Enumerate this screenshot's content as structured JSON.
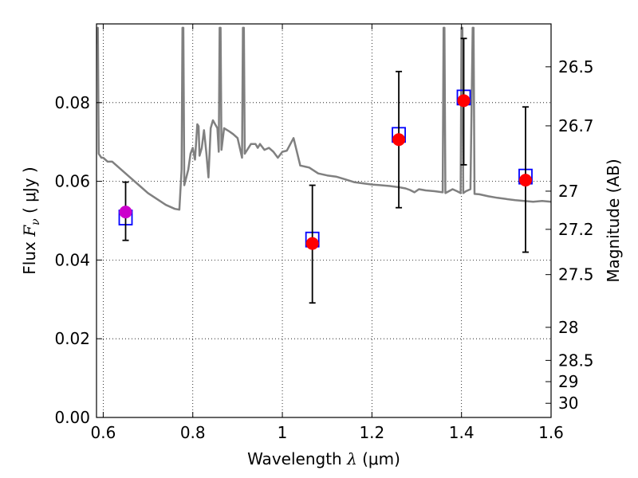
{
  "chart_data": {
    "type": "scatter",
    "xlabel": {
      "prefix": "Wavelength  ",
      "symbol": "λ",
      "units": " (μm)"
    },
    "ylabel": {
      "prefix": "Flux  ",
      "symbol": "F",
      "subscript": "ν",
      "units": "  ( μJy )"
    },
    "right_ylabel": "Magnitude (AB)",
    "xlim": [
      0.585,
      1.6
    ],
    "ylim": [
      0.0,
      0.1
    ],
    "x_ticks": [
      {
        "value": 0.6,
        "label": "0.6"
      },
      {
        "value": 0.8,
        "label": "0.8"
      },
      {
        "value": 1.0,
        "label": "1"
      },
      {
        "value": 1.2,
        "label": "1.2"
      },
      {
        "value": 1.4,
        "label": "1.4"
      },
      {
        "value": 1.6,
        "label": "1.6"
      }
    ],
    "y_ticks": [
      {
        "value": 0.0,
        "label": "0.00"
      },
      {
        "value": 0.02,
        "label": "0.02"
      },
      {
        "value": 0.04,
        "label": "0.04"
      },
      {
        "value": 0.06,
        "label": "0.06"
      },
      {
        "value": 0.08,
        "label": "0.08"
      }
    ],
    "right_ticks": [
      {
        "flux": 0.0891,
        "label": "26.5"
      },
      {
        "flux": 0.0741,
        "label": "26.7"
      },
      {
        "flux": 0.0575,
        "label": "27"
      },
      {
        "flux": 0.0478,
        "label": "27.2"
      },
      {
        "flux": 0.0363,
        "label": "27.5"
      },
      {
        "flux": 0.0229,
        "label": "28"
      },
      {
        "flux": 0.0145,
        "label": "28.5"
      },
      {
        "flux": 0.0091,
        "label": "29"
      },
      {
        "flux": 0.0036,
        "label": "30"
      }
    ],
    "grid": true,
    "model_spectrum": {
      "color": "#808080",
      "points": [
        [
          0.585,
          0.095
        ],
        [
          0.588,
          0.099
        ],
        [
          0.59,
          0.067
        ],
        [
          0.596,
          0.066
        ],
        [
          0.6,
          0.066
        ],
        [
          0.61,
          0.065
        ],
        [
          0.62,
          0.065
        ],
        [
          0.64,
          0.063
        ],
        [
          0.66,
          0.061
        ],
        [
          0.68,
          0.059
        ],
        [
          0.7,
          0.057
        ],
        [
          0.72,
          0.0555
        ],
        [
          0.74,
          0.054
        ],
        [
          0.76,
          0.053
        ],
        [
          0.77,
          0.0528
        ],
        [
          0.775,
          0.063
        ],
        [
          0.777,
          0.099
        ],
        [
          0.779,
          0.099
        ],
        [
          0.781,
          0.059
        ],
        [
          0.79,
          0.063
        ],
        [
          0.795,
          0.067
        ],
        [
          0.8,
          0.0685
        ],
        [
          0.805,
          0.0655
        ],
        [
          0.81,
          0.0745
        ],
        [
          0.813,
          0.074
        ],
        [
          0.815,
          0.0665
        ],
        [
          0.82,
          0.0685
        ],
        [
          0.825,
          0.073
        ],
        [
          0.83,
          0.0675
        ],
        [
          0.835,
          0.061
        ],
        [
          0.84,
          0.0735
        ],
        [
          0.845,
          0.0755
        ],
        [
          0.85,
          0.0745
        ],
        [
          0.855,
          0.0735
        ],
        [
          0.858,
          0.0675
        ],
        [
          0.86,
          0.099
        ],
        [
          0.862,
          0.099
        ],
        [
          0.864,
          0.068
        ],
        [
          0.87,
          0.0735
        ],
        [
          0.88,
          0.0728
        ],
        [
          0.89,
          0.072
        ],
        [
          0.9,
          0.071
        ],
        [
          0.905,
          0.0685
        ],
        [
          0.91,
          0.066
        ],
        [
          0.912,
          0.099
        ],
        [
          0.914,
          0.099
        ],
        [
          0.916,
          0.067
        ],
        [
          0.93,
          0.0695
        ],
        [
          0.94,
          0.0695
        ],
        [
          0.945,
          0.0685
        ],
        [
          0.95,
          0.0695
        ],
        [
          0.96,
          0.068
        ],
        [
          0.97,
          0.0685
        ],
        [
          0.98,
          0.0675
        ],
        [
          0.99,
          0.066
        ],
        [
          1.0,
          0.0675
        ],
        [
          1.01,
          0.0678
        ],
        [
          1.025,
          0.071
        ],
        [
          1.04,
          0.064
        ],
        [
          1.06,
          0.0635
        ],
        [
          1.08,
          0.062
        ],
        [
          1.1,
          0.0615
        ],
        [
          1.12,
          0.0612
        ],
        [
          1.14,
          0.0605
        ],
        [
          1.16,
          0.0598
        ],
        [
          1.18,
          0.0595
        ],
        [
          1.2,
          0.0592
        ],
        [
          1.22,
          0.059
        ],
        [
          1.24,
          0.0588
        ],
        [
          1.26,
          0.0585
        ],
        [
          1.275,
          0.0582
        ],
        [
          1.285,
          0.0578
        ],
        [
          1.295,
          0.0572
        ],
        [
          1.305,
          0.058
        ],
        [
          1.32,
          0.0577
        ],
        [
          1.34,
          0.0575
        ],
        [
          1.358,
          0.0572
        ],
        [
          1.36,
          0.099
        ],
        [
          1.362,
          0.099
        ],
        [
          1.364,
          0.057
        ],
        [
          1.38,
          0.058
        ],
        [
          1.39,
          0.0575
        ],
        [
          1.398,
          0.057
        ],
        [
          1.4,
          0.099
        ],
        [
          1.402,
          0.099
        ],
        [
          1.404,
          0.057
        ],
        [
          1.41,
          0.0575
        ],
        [
          1.42,
          0.058
        ],
        [
          1.425,
          0.099
        ],
        [
          1.427,
          0.099
        ],
        [
          1.429,
          0.0568
        ],
        [
          1.44,
          0.0567
        ],
        [
          1.46,
          0.0562
        ],
        [
          1.48,
          0.0558
        ],
        [
          1.5,
          0.0555
        ],
        [
          1.52,
          0.0552
        ],
        [
          1.54,
          0.055
        ],
        [
          1.56,
          0.0548
        ],
        [
          1.58,
          0.055
        ],
        [
          1.6,
          0.0548
        ]
      ]
    },
    "model_flux_boxes": {
      "color": "#0000ff",
      "points": [
        [
          0.65,
          0.0508
        ],
        [
          1.067,
          0.0452
        ],
        [
          1.26,
          0.0718
        ],
        [
          1.405,
          0.0813
        ],
        [
          1.543,
          0.0612
        ]
      ]
    },
    "observed_points": {
      "marker_color": "#ff0000",
      "errorbar_color": "#000000",
      "points": [
        {
          "x": 0.65,
          "y": 0.0522,
          "lo": 0.045,
          "hi": 0.0598,
          "color": "#cc00cc"
        },
        {
          "x": 1.067,
          "y": 0.0442,
          "lo": 0.0291,
          "hi": 0.059,
          "color": "#ff0000"
        },
        {
          "x": 1.26,
          "y": 0.0706,
          "lo": 0.0533,
          "hi": 0.0879,
          "color": "#ff0000"
        },
        {
          "x": 1.405,
          "y": 0.0805,
          "lo": 0.0642,
          "hi": 0.0963,
          "color": "#ff0000"
        },
        {
          "x": 1.543,
          "y": 0.0603,
          "lo": 0.042,
          "hi": 0.0789,
          "color": "#ff0000"
        }
      ]
    }
  }
}
